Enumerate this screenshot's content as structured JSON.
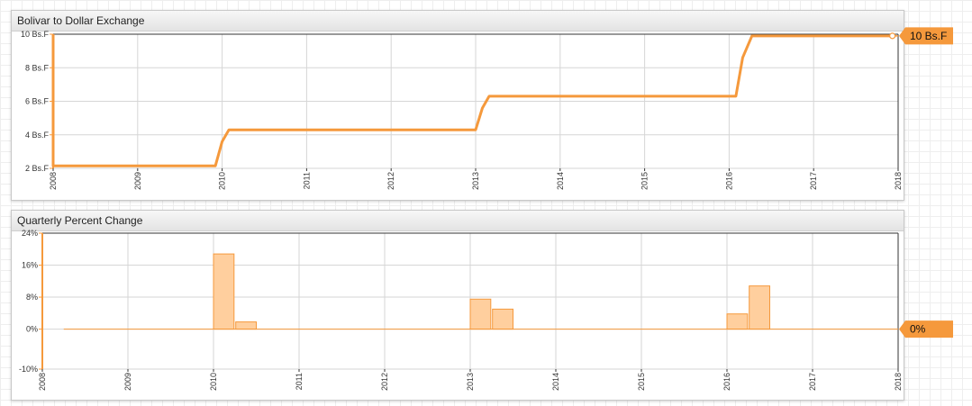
{
  "chart_data": [
    {
      "type": "line",
      "title": "Bolivar to Dollar Exchange",
      "y_ticks": [
        2,
        4,
        6,
        8,
        10
      ],
      "y_tick_labels": [
        "2 Bs.F",
        "4 Bs.F",
        "6 Bs.F",
        "8 Bs.F",
        "10 Bs.F"
      ],
      "ylim": [
        2,
        10
      ],
      "x_ticks": [
        "2008",
        "2009",
        "2010",
        "2011",
        "2012",
        "2013",
        "2014",
        "2015",
        "2016",
        "2017",
        "2018"
      ],
      "xlim": [
        2008,
        2018
      ],
      "grid": true,
      "line_color": "#f5993c",
      "points": [
        {
          "x": 2008.0,
          "y": 10.0
        },
        {
          "x": 2008.0,
          "y": 2.15
        },
        {
          "x": 2009.92,
          "y": 2.15
        },
        {
          "x": 2010.0,
          "y": 3.6
        },
        {
          "x": 2010.08,
          "y": 4.3
        },
        {
          "x": 2013.0,
          "y": 4.3
        },
        {
          "x": 2013.08,
          "y": 5.6
        },
        {
          "x": 2013.16,
          "y": 6.3
        },
        {
          "x": 2016.08,
          "y": 6.3
        },
        {
          "x": 2016.16,
          "y": 8.6
        },
        {
          "x": 2016.27,
          "y": 9.9
        },
        {
          "x": 2017.9,
          "y": 9.9
        }
      ],
      "last_value_label": "10 Bs.F",
      "last_value_y": 9.9
    },
    {
      "type": "bar",
      "title": "Quarterly Percent Change",
      "y_ticks": [
        -10,
        0,
        8,
        16,
        24
      ],
      "y_tick_labels": [
        "-10%",
        "0%",
        "8%",
        "16%",
        "24%"
      ],
      "ylim": [
        -10,
        24
      ],
      "x_ticks": [
        "2008",
        "2009",
        "2010",
        "2011",
        "2012",
        "2013",
        "2014",
        "2015",
        "2016",
        "2017",
        "2018"
      ],
      "xlim": [
        2008,
        2018
      ],
      "grid": true,
      "bar_fill": "#ffcf9e",
      "bar_stroke": "#f5993c",
      "line_color": "#f5993c",
      "baseline_x_range": [
        2008.25,
        2018
      ],
      "bars": [
        {
          "x0": 2010.0,
          "x1": 2010.24,
          "value": 18.8
        },
        {
          "x0": 2010.26,
          "x1": 2010.5,
          "value": 1.8
        },
        {
          "x0": 2013.0,
          "x1": 2013.24,
          "value": 7.5
        },
        {
          "x0": 2013.26,
          "x1": 2013.5,
          "value": 5.0
        },
        {
          "x0": 2016.0,
          "x1": 2016.24,
          "value": 3.8
        },
        {
          "x0": 2016.26,
          "x1": 2016.5,
          "value": 10.8
        }
      ],
      "last_value_label": "0%",
      "last_value_y": 0
    }
  ]
}
